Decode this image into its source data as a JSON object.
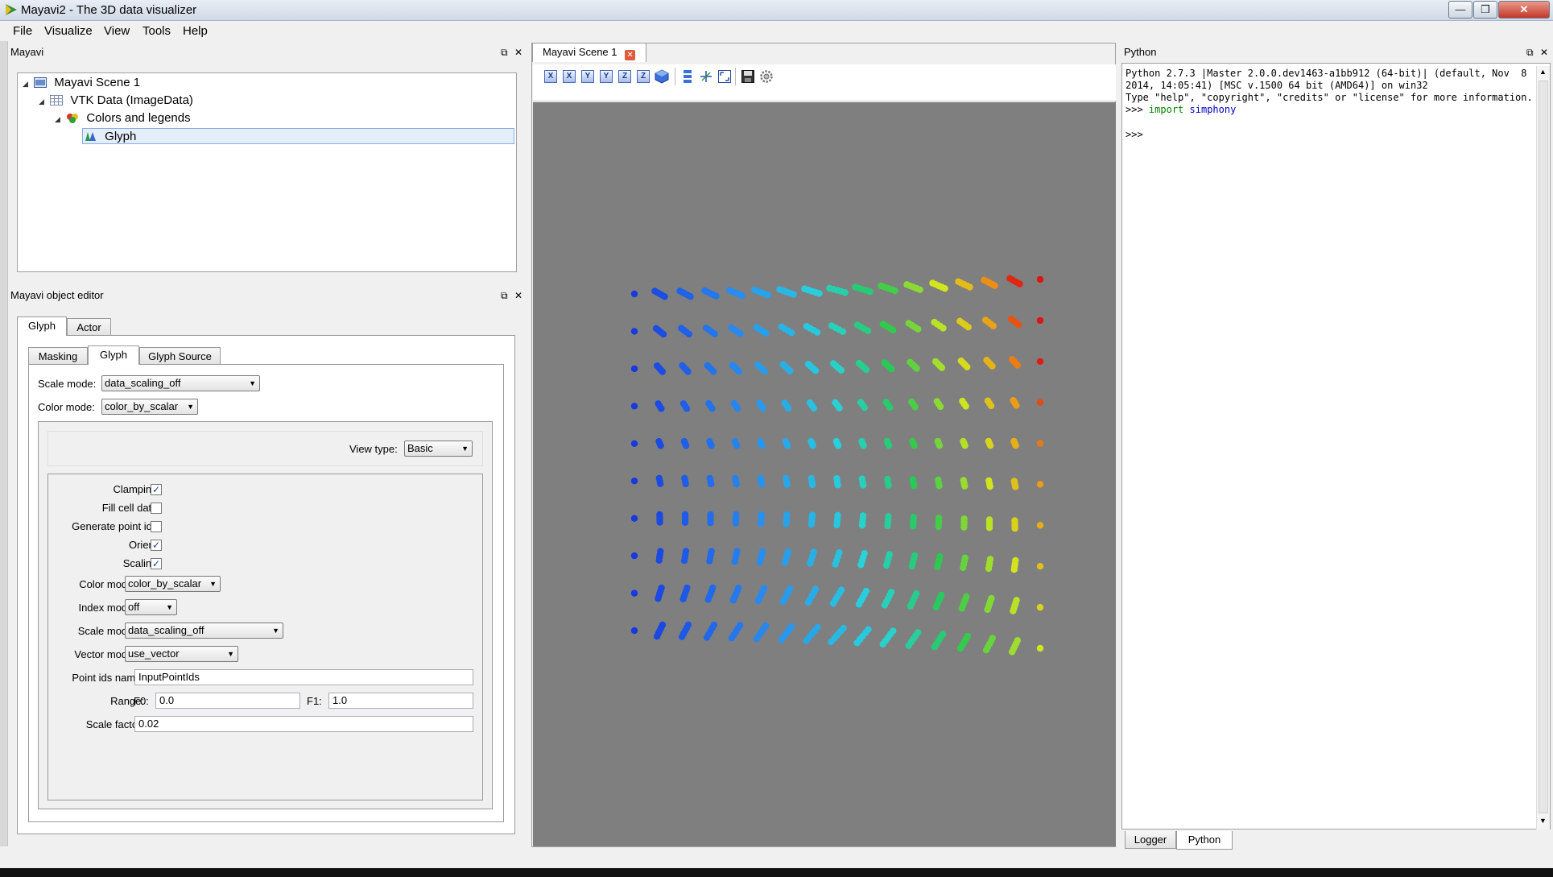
{
  "window": {
    "title": "Mayavi2 - The 3D data visualizer",
    "minimize": "—",
    "maximize": "❐",
    "close": "✕"
  },
  "menu": [
    "File",
    "Visualize",
    "View",
    "Tools",
    "Help"
  ],
  "pipeline": {
    "title": "Mayavi",
    "tree": [
      {
        "label": "Mayavi Scene 1",
        "icon": "scene-icon"
      },
      {
        "label": "VTK Data (ImageData)",
        "icon": "table-icon"
      },
      {
        "label": "Colors and legends",
        "icon": "colors-icon"
      },
      {
        "label": "Glyph",
        "icon": "glyph-icon"
      }
    ]
  },
  "editor": {
    "title": "Mayavi object editor",
    "outer_tabs": [
      "Glyph",
      "Actor"
    ],
    "inner_tabs": [
      "Masking",
      "Glyph",
      "Glyph Source"
    ],
    "scale_mode": {
      "label": "Scale mode:",
      "value": "data_scaling_off"
    },
    "color_mode": {
      "label": "Color mode:",
      "value": "color_by_scalar"
    },
    "view_type": {
      "label": "View type:",
      "value": "Basic"
    },
    "clamping": {
      "label": "Clamping:",
      "checked": true
    },
    "fill_cell_data": {
      "label": "Fill cell data:",
      "checked": false
    },
    "generate_point_ids": {
      "label": "Generate point ids:",
      "checked": false
    },
    "orient": {
      "label": "Orient:",
      "checked": true
    },
    "scaling": {
      "label": "Scaling:",
      "checked": true
    },
    "color_mode2": {
      "label": "Color mode:",
      "value": "color_by_scalar"
    },
    "index_mode": {
      "label": "Index mode:",
      "value": "off"
    },
    "scale_mode2": {
      "label": "Scale mode:",
      "value": "data_scaling_off"
    },
    "vector_mode": {
      "label": "Vector mode:",
      "value": "use_vector"
    },
    "point_ids_name": {
      "label": "Point ids name:",
      "value": "InputPointIds"
    },
    "range": {
      "label": "Range:",
      "f0_label": "F0:",
      "f0": "0.0",
      "f1_label": "F1:",
      "f1": "1.0"
    },
    "scale_factor": {
      "label": "Scale factor:",
      "value": "0.02"
    }
  },
  "scene": {
    "tab_label": "Mayavi Scene 1",
    "toolbar": [
      "X",
      "X",
      "Y",
      "Y",
      "Z",
      "Z"
    ],
    "toolbar_icons": [
      "iso-view-icon",
      "parallel-projection-icon",
      "axes-icon",
      "fullscreen-icon",
      "save-icon",
      "settings-icon"
    ]
  },
  "python": {
    "title": "Python",
    "lines": [
      "Python 2.7.3 |Master 2.0.0.dev1463-a1bb912 (64-bit)| (default, Nov  8",
      "2014, 14:05:41) [MSC v.1500 64 bit (AMD64)] on win32",
      "Type \"help\", \"copyright\", \"credits\" or \"license\" for more information."
    ],
    "prompt": ">>>",
    "import_kw": "import",
    "import_name": "simphony",
    "prompt2": ">>>",
    "tabs": [
      "Logger",
      "Python"
    ]
  }
}
